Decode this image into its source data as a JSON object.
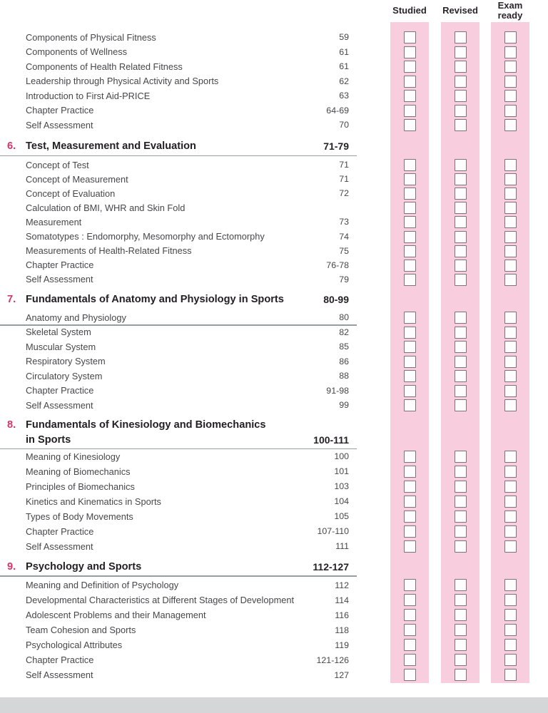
{
  "columns": [
    {
      "label": "Studied"
    },
    {
      "label": "Revised"
    },
    {
      "label": "Exam ready"
    }
  ],
  "sections": [
    {
      "items": [
        {
          "label": "Components of Physical Fitness",
          "pages": "59"
        },
        {
          "label": "Components of Wellness",
          "pages": "61"
        },
        {
          "label": "Components of Health Related Fitness",
          "pages": "61"
        },
        {
          "label": "Leadership through Physical Activity and Sports",
          "pages": "62"
        },
        {
          "label": "Introduction to First Aid-PRICE",
          "pages": "63"
        },
        {
          "label": "Chapter Practice",
          "pages": "64-69"
        },
        {
          "label": "Self Assessment",
          "pages": "70"
        }
      ]
    },
    {
      "number": "6.",
      "title": "Test, Measurement and Evaluation",
      "pages": "71-79",
      "items": [
        {
          "label": "Concept of Test",
          "pages": "71"
        },
        {
          "label": "Concept of Measurement",
          "pages": "71"
        },
        {
          "label": "Concept of Evaluation",
          "pages": "72"
        },
        {
          "label": "Calculation of BMI, WHR and Skin Fold",
          "pages": ""
        },
        {
          "label": "Measurement",
          "pages": "73"
        },
        {
          "label": "Somatotypes : Endomorphy, Mesomorphy and Ectomorphy",
          "pages": "74"
        },
        {
          "label": "Measurements of Health-Related Fitness",
          "pages": "75"
        },
        {
          "label": "Chapter Practice",
          "pages": "76-78"
        },
        {
          "label": "Self Assessment",
          "pages": "79"
        }
      ]
    },
    {
      "number": "7.",
      "title": "Fundamentals of Anatomy and Physiology in Sports",
      "pages": "80-99",
      "items": [
        {
          "label": "Anatomy and Physiology",
          "pages": "80"
        },
        {
          "label": "Skeletal System",
          "pages": "82"
        },
        {
          "label": "Muscular System",
          "pages": "85"
        },
        {
          "label": "Respiratory System",
          "pages": "86"
        },
        {
          "label": "Circulatory System",
          "pages": "88"
        },
        {
          "label": "Chapter Practice",
          "pages": "91-98"
        },
        {
          "label": "Self Assessment",
          "pages": "99"
        }
      ]
    },
    {
      "number": "8.",
      "title_lines": [
        "Fundamentals of Kinesiology and Biomechanics",
        "in Sports"
      ],
      "pages": "100-111",
      "items": [
        {
          "label": "Meaning of Kinesiology",
          "pages": "100"
        },
        {
          "label": "Meaning of Biomechanics",
          "pages": "101"
        },
        {
          "label": "Principles of Biomechanics",
          "pages": "103"
        },
        {
          "label": "Kinetics and Kinematics in Sports",
          "pages": "104"
        },
        {
          "label": "Types of Body Movements",
          "pages": "105"
        },
        {
          "label": "Chapter Practice",
          "pages": "107-110"
        },
        {
          "label": "Self Assessment",
          "pages": "111"
        }
      ]
    },
    {
      "number": "9.",
      "title": "Psychology and Sports",
      "pages": "112-127",
      "items": [
        {
          "label": "Meaning and Definition of Psychology",
          "pages": "112"
        },
        {
          "label": "Developmental Characteristics at Different Stages of Development",
          "pages": "114"
        },
        {
          "label": "Adolescent Problems and their Management",
          "pages": "116"
        },
        {
          "label": "Team Cohesion and Sports",
          "pages": "118"
        },
        {
          "label": "Psychological Attributes",
          "pages": "119"
        },
        {
          "label": "Chapter Practice",
          "pages": "121-126"
        },
        {
          "label": "Self Assessment",
          "pages": "127"
        }
      ]
    }
  ],
  "colors": {
    "band": "#f8cdde",
    "accent": "#d6336c",
    "footer_bar": "#d4d6d7",
    "checkbox_border": "#7c7277",
    "rule": "#989da1"
  }
}
